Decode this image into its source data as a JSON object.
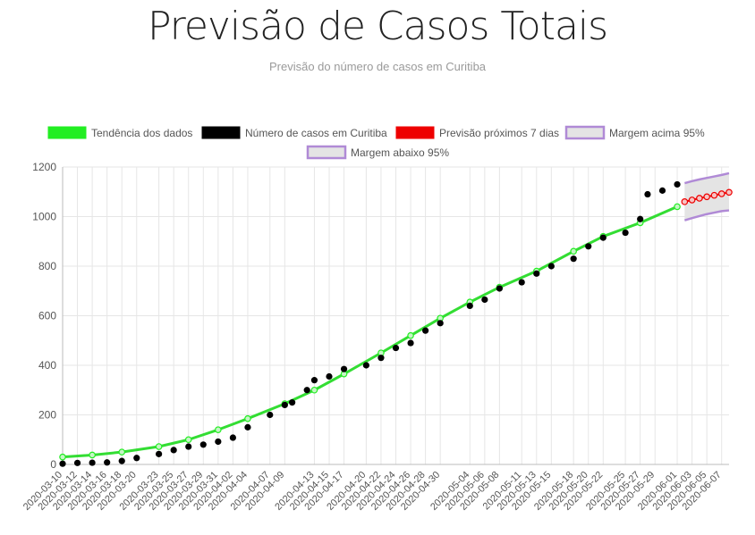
{
  "page": {
    "title": "Previsão de Casos Totais",
    "subtitle": "Previsão do número de casos em Curitiba"
  },
  "colors": {
    "trend": "#22ee22",
    "trend_line": "#33dd33",
    "cases": "#000000",
    "forecast": "#ee0000",
    "margin_line": "#b08ad6",
    "margin_fill": "#e4e4e4",
    "grid": "#e6e6e6",
    "axis_text": "#555555"
  },
  "chart_data": {
    "type": "line",
    "x_type": "date",
    "ylim": [
      0,
      1200
    ],
    "y_ticks": [
      0,
      200,
      400,
      600,
      800,
      1000,
      1200
    ],
    "grid": true,
    "legend_position": "top",
    "x_range": [
      "2020-03-10",
      "2020-06-08"
    ],
    "x_tick_labels": [
      "2020-03-10",
      "2020-03-12",
      "2020-03-14",
      "2020-03-16",
      "2020-03-18",
      "2020-03-20",
      "2020-03-23",
      "2020-03-25",
      "2020-03-27",
      "2020-03-29",
      "2020-03-31",
      "2020-04-02",
      "2020-04-04",
      "2020-04-07",
      "2020-04-09",
      "2020-04-13",
      "2020-04-15",
      "2020-04-17",
      "2020-04-20",
      "2020-04-22",
      "2020-04-24",
      "2020-04-26",
      "2020-04-28",
      "2020-04-30",
      "2020-05-04",
      "2020-05-06",
      "2020-05-08",
      "2020-05-11",
      "2020-05-13",
      "2020-05-15",
      "2020-05-18",
      "2020-05-20",
      "2020-05-22",
      "2020-05-25",
      "2020-05-27",
      "2020-05-29",
      "2020-06-01",
      "2020-06-03",
      "2020-06-05",
      "2020-06-07"
    ],
    "series": [
      {
        "name": "Tendência dos dados",
        "x": [
          "2020-03-10",
          "2020-03-14",
          "2020-03-18",
          "2020-03-23",
          "2020-03-27",
          "2020-03-31",
          "2020-04-04",
          "2020-04-09",
          "2020-04-13",
          "2020-04-17",
          "2020-04-22",
          "2020-04-26",
          "2020-04-30",
          "2020-05-04",
          "2020-05-08",
          "2020-05-13",
          "2020-05-18",
          "2020-05-22",
          "2020-05-27",
          "2020-06-01"
        ],
        "y": [
          30,
          38,
          50,
          72,
          100,
          140,
          185,
          245,
          300,
          365,
          450,
          520,
          590,
          655,
          715,
          780,
          860,
          920,
          975,
          1040
        ]
      },
      {
        "name": "Número de casos em Curitiba",
        "x": [
          "2020-03-10",
          "2020-03-12",
          "2020-03-14",
          "2020-03-16",
          "2020-03-18",
          "2020-03-20",
          "2020-03-23",
          "2020-03-25",
          "2020-03-27",
          "2020-03-29",
          "2020-03-31",
          "2020-04-02",
          "2020-04-04",
          "2020-04-07",
          "2020-04-09",
          "2020-04-10",
          "2020-04-12",
          "2020-04-13",
          "2020-04-15",
          "2020-04-17",
          "2020-04-20",
          "2020-04-22",
          "2020-04-24",
          "2020-04-26",
          "2020-04-28",
          "2020-04-30",
          "2020-05-04",
          "2020-05-06",
          "2020-05-08",
          "2020-05-11",
          "2020-05-13",
          "2020-05-15",
          "2020-05-18",
          "2020-05-20",
          "2020-05-22",
          "2020-05-25",
          "2020-05-27",
          "2020-05-28",
          "2020-05-30",
          "2020-06-01"
        ],
        "y": [
          3,
          6,
          7,
          8,
          14,
          26,
          42,
          58,
          72,
          80,
          92,
          108,
          150,
          200,
          240,
          250,
          300,
          340,
          355,
          385,
          400,
          430,
          470,
          490,
          540,
          570,
          640,
          665,
          710,
          735,
          770,
          800,
          830,
          880,
          915,
          935,
          990,
          1090,
          1105,
          1130
        ]
      },
      {
        "name": "Previsão próximos 7 dias",
        "x": [
          "2020-06-02",
          "2020-06-03",
          "2020-06-04",
          "2020-06-05",
          "2020-06-06",
          "2020-06-07",
          "2020-06-08"
        ],
        "y": [
          1060,
          1067,
          1074,
          1080,
          1086,
          1092,
          1098
        ]
      },
      {
        "name": "Margem acima 95%",
        "x": [
          "2020-06-02",
          "2020-06-03",
          "2020-06-04",
          "2020-06-05",
          "2020-06-06",
          "2020-06-07",
          "2020-06-08"
        ],
        "y": [
          1135,
          1143,
          1150,
          1156,
          1162,
          1168,
          1175
        ]
      },
      {
        "name": "Margem abaixo 95%",
        "x": [
          "2020-06-02",
          "2020-06-03",
          "2020-06-04",
          "2020-06-05",
          "2020-06-06",
          "2020-06-07",
          "2020-06-08"
        ],
        "y": [
          985,
          994,
          1002,
          1010,
          1016,
          1022,
          1025
        ]
      }
    ]
  }
}
